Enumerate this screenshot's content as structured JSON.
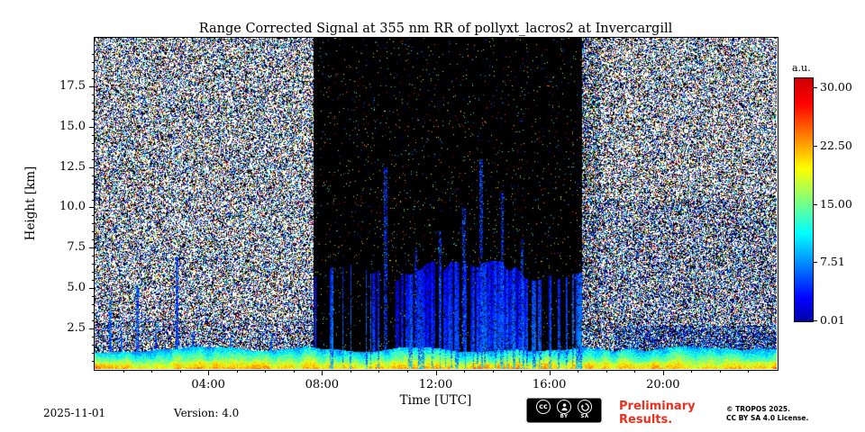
{
  "colors": {
    "preliminary_red": "#e8301f",
    "axis": "#000000",
    "background": "#ffffff"
  },
  "figure": {
    "footer": {
      "date": "2025-11-01",
      "version": "Version: 4.0",
      "preliminary_line1": "Preliminary",
      "preliminary_line2": "Results.",
      "copyright_line1": "© TROPOS 2025.",
      "copyright_line2": "CC BY SA 4.0 License.",
      "license_badge": {
        "cc_label": "cc",
        "by_label": "BY",
        "sa_label": "SA"
      }
    }
  },
  "chart_data": {
    "type": "heatmap",
    "title": "Range Corrected Signal at 355 nm RR of pollyxt_lacros2 at Invercargill",
    "xlabel": "Time [UTC]",
    "ylabel": "Height [km]",
    "xlim_hours": [
      0,
      24
    ],
    "ylim_km": [
      0,
      20.5
    ],
    "x_ticks": [
      {
        "hour": 4,
        "label": "04:00"
      },
      {
        "hour": 8,
        "label": "08:00"
      },
      {
        "hour": 12,
        "label": "12:00"
      },
      {
        "hour": 16,
        "label": "16:00"
      },
      {
        "hour": 20,
        "label": "20:00"
      }
    ],
    "x_minor_every_hours": 1,
    "y_ticks": [
      {
        "value": 2.5,
        "label": "2.5"
      },
      {
        "value": 5.0,
        "label": "5.0"
      },
      {
        "value": 7.5,
        "label": "7.5"
      },
      {
        "value": 10.0,
        "label": "10.0"
      },
      {
        "value": 12.5,
        "label": "12.5"
      },
      {
        "value": 15.0,
        "label": "15.0"
      },
      {
        "value": 17.5,
        "label": "17.5"
      }
    ],
    "y_minor_every_km": 0.5,
    "colorbar": {
      "label": "a.u.",
      "colormap": "jet",
      "vmin": 0.01,
      "vmax": 30.0,
      "ticks": [
        {
          "value": 30.0,
          "label": "30.00"
        },
        {
          "value": 22.5,
          "label": "22.50"
        },
        {
          "value": 15.0,
          "label": "15.00"
        },
        {
          "value": 7.51,
          "label": "7.51"
        },
        {
          "value": 0.01,
          "label": "0.01"
        }
      ]
    },
    "features": {
      "surface_aerosol_layer": {
        "time_h": [
          0,
          24
        ],
        "height_km": [
          0,
          1.3
        ],
        "signal_au": [
          12,
          24
        ],
        "appearance": "strong green-yellow band near ground"
      },
      "attenuated_cloud_region": {
        "time_h": [
          7.7,
          17.15
        ],
        "height_km": [
          5.5,
          20.5
        ],
        "signal_au": 0,
        "appearance": "black fully-attenuated region with sparse colored speckle"
      },
      "rain_streak_region": {
        "time_h": [
          7.7,
          17.15
        ],
        "height_km": [
          1.2,
          6.5
        ],
        "appearance": "vertical blue columns interleaved with black streaks"
      },
      "post_cloud_blue_haze": {
        "time_h": [
          17.1,
          24
        ],
        "height_km": [
          0,
          10.5
        ],
        "appearance": "blue-tinted speckle"
      },
      "evening_low_cloud": {
        "time_h": [
          18.3,
          24
        ],
        "height_km": [
          0,
          2.7
        ],
        "appearance": "dense blue speckle block"
      },
      "background_noise": {
        "appearance": "white/black/multicolor speckle outside attenuated region"
      }
    }
  }
}
